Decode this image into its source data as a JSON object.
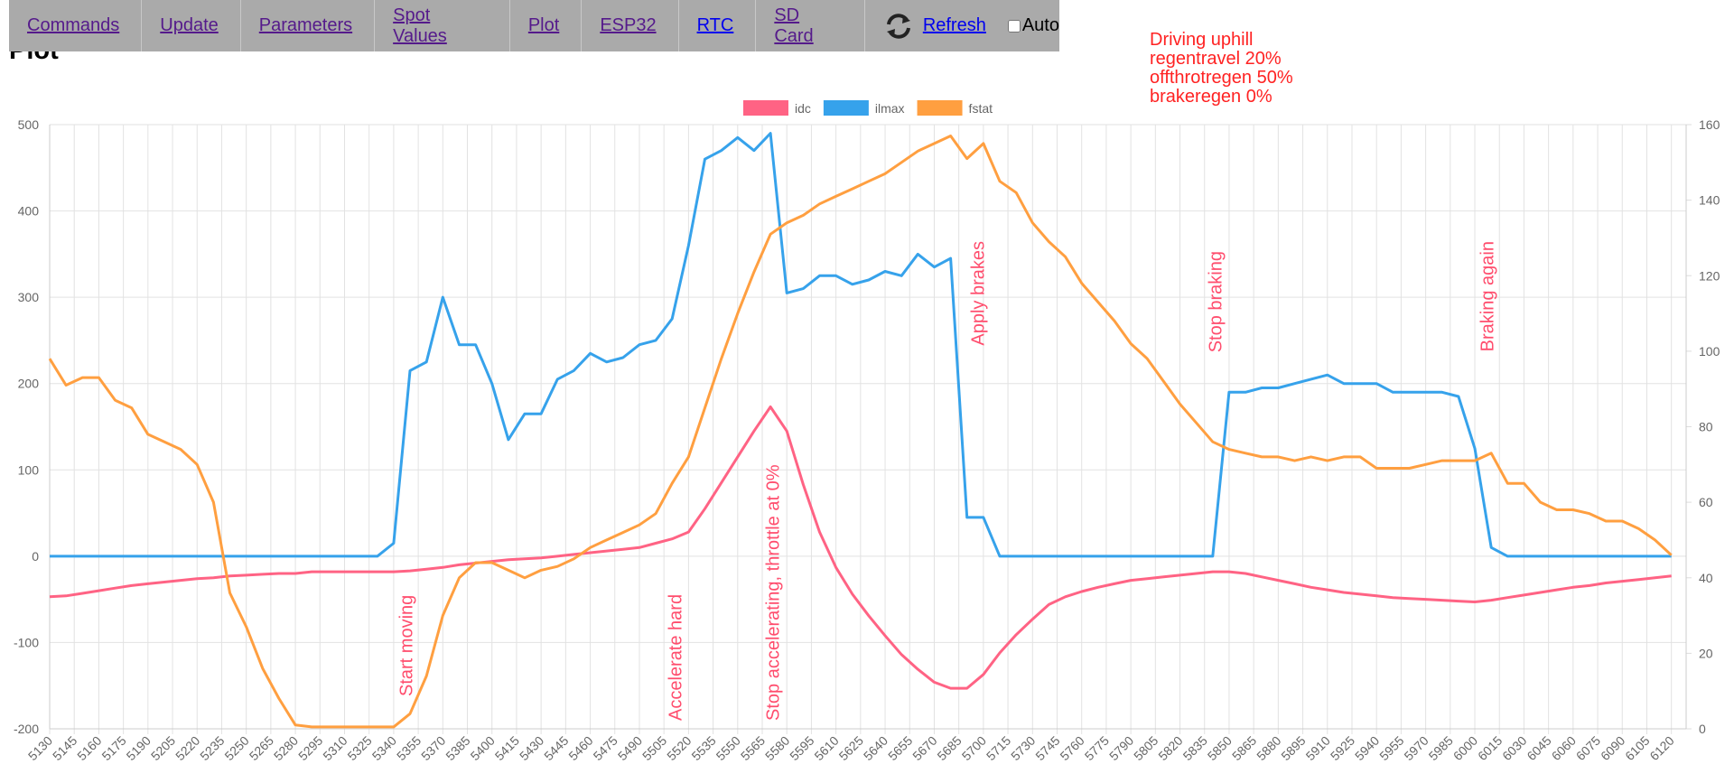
{
  "page_title": "Plot",
  "nav": {
    "items": [
      "Commands",
      "Update",
      "Parameters",
      "Spot Values",
      "Plot",
      "ESP32",
      "RTC",
      "SD Card"
    ],
    "refresh": "Refresh",
    "auto": "Auto"
  },
  "notes": [
    "Driving uphill",
    "regentravel 20%",
    "offthrotregen 50%",
    "brakeregen 0%"
  ],
  "chart_data": {
    "type": "line",
    "grid": true,
    "legend": "top",
    "x": [
      5130,
      5140,
      5150,
      5160,
      5170,
      5180,
      5190,
      5200,
      5210,
      5220,
      5230,
      5240,
      5250,
      5260,
      5270,
      5280,
      5290,
      5300,
      5310,
      5320,
      5330,
      5340,
      5350,
      5360,
      5370,
      5380,
      5390,
      5400,
      5410,
      5420,
      5430,
      5440,
      5450,
      5460,
      5470,
      5480,
      5490,
      5500,
      5510,
      5520,
      5530,
      5540,
      5550,
      5560,
      5570,
      5580,
      5590,
      5600,
      5610,
      5620,
      5630,
      5640,
      5650,
      5660,
      5670,
      5680,
      5690,
      5700,
      5710,
      5720,
      5730,
      5740,
      5750,
      5760,
      5770,
      5780,
      5790,
      5800,
      5810,
      5820,
      5830,
      5840,
      5850,
      5860,
      5870,
      5880,
      5890,
      5900,
      5910,
      5920,
      5930,
      5940,
      5950,
      5960,
      5970,
      5980,
      5990,
      6000,
      6010,
      6020,
      6030,
      6040,
      6050,
      6060,
      6070,
      6080,
      6090,
      6100,
      6110,
      6120
    ],
    "xlim": [
      5130,
      6129
    ],
    "xticks": [
      5130,
      5145,
      5160,
      5175,
      5190,
      5205,
      5220,
      5235,
      5250,
      5265,
      5280,
      5295,
      5310,
      5325,
      5340,
      5355,
      5370,
      5385,
      5400,
      5415,
      5430,
      5445,
      5460,
      5475,
      5490,
      5505,
      5520,
      5535,
      5550,
      5565,
      5580,
      5595,
      5610,
      5625,
      5640,
      5655,
      5670,
      5685,
      5700,
      5715,
      5730,
      5745,
      5760,
      5775,
      5790,
      5805,
      5820,
      5835,
      5850,
      5865,
      5880,
      5895,
      5910,
      5925,
      5940,
      5955,
      5970,
      5985,
      6000,
      6015,
      6030,
      6045,
      6060,
      6075,
      6090,
      6105,
      6120
    ],
    "ylim": [
      -200,
      500
    ],
    "yticks": [
      -200,
      -100,
      0,
      100,
      200,
      300,
      400,
      500
    ],
    "y2lim": [
      0,
      160
    ],
    "y2ticks": [
      0,
      20,
      40,
      60,
      80,
      100,
      120,
      140,
      160
    ],
    "series": [
      {
        "name": "idc",
        "color": "#ff6384",
        "values": [
          -47,
          -46,
          -43,
          -40,
          -37,
          -34,
          -32,
          -30,
          -28,
          -26,
          -25,
          -23,
          -22,
          -21,
          -20,
          -20,
          -18,
          -18,
          -18,
          -18,
          -18,
          -18,
          -17,
          -15,
          -13,
          -10,
          -8,
          -6,
          -4,
          -3,
          -2,
          0,
          2,
          4,
          6,
          8,
          10,
          15,
          20,
          28,
          55,
          85,
          115,
          145,
          173,
          145,
          83,
          28,
          -13,
          -44,
          -69,
          -92,
          -114,
          -131,
          -146,
          -153,
          -153,
          -137,
          -112,
          -91,
          -73,
          -56,
          -47,
          -41,
          -36,
          -32,
          -28,
          -26,
          -24,
          -22,
          -20,
          -18,
          -18,
          -20,
          -24,
          -28,
          -32,
          -36,
          -39,
          -42,
          -44,
          -46,
          -48,
          -49,
          -50,
          -51,
          -52,
          -53,
          -51,
          -48,
          -45,
          -42,
          -39,
          -36,
          -34,
          -31,
          -29,
          -27,
          -25,
          -23
        ]
      },
      {
        "name": "ilmax",
        "color": "#36a2eb",
        "values": [
          0,
          0,
          0,
          0,
          0,
          0,
          0,
          0,
          0,
          0,
          0,
          0,
          0,
          0,
          0,
          0,
          0,
          0,
          0,
          0,
          0,
          15,
          215,
          225,
          300,
          245,
          245,
          200,
          135,
          165,
          165,
          205,
          215,
          235,
          225,
          230,
          245,
          250,
          275,
          360,
          460,
          470,
          485,
          470,
          490,
          305,
          310,
          325,
          325,
          315,
          320,
          330,
          325,
          350,
          335,
          345,
          45,
          45,
          0,
          0,
          0,
          0,
          0,
          0,
          0,
          0,
          0,
          0,
          0,
          0,
          0,
          0,
          190,
          190,
          195,
          195,
          200,
          205,
          210,
          200,
          200,
          200,
          190,
          190,
          190,
          190,
          185,
          125,
          10,
          0,
          0,
          0,
          0,
          0,
          0,
          0,
          0,
          0,
          0,
          0
        ]
      },
      {
        "name": "fstat",
        "color": "#ff9f40",
        "axis": "y2",
        "values": [
          98,
          91,
          93,
          93,
          87,
          85,
          78,
          76,
          74,
          70,
          60,
          36,
          27,
          16,
          8,
          1,
          0.5,
          0.5,
          0.5,
          0.5,
          0.5,
          0.5,
          4,
          14,
          30,
          40,
          44,
          44,
          42,
          40,
          42,
          43,
          45,
          48,
          50,
          52,
          54,
          57,
          65,
          72,
          85,
          98,
          110,
          121,
          131,
          134,
          136,
          139,
          141,
          143,
          145,
          147,
          150,
          153,
          155,
          157,
          151,
          155,
          145,
          142,
          134,
          129,
          125,
          118,
          113,
          108,
          102,
          98,
          92,
          86,
          81,
          76,
          74,
          73,
          72,
          72,
          71,
          72,
          71,
          72,
          72,
          69,
          69,
          69,
          70,
          71,
          71,
          71,
          73,
          65,
          65,
          60,
          58,
          58,
          57,
          55,
          55,
          53,
          50,
          46
        ]
      }
    ],
    "annotations": [
      "Start moving",
      "Accelerate hard",
      "Stop accelerating, throttle at 0%",
      "Apply brakes",
      "Stop braking",
      "Braking again"
    ]
  }
}
